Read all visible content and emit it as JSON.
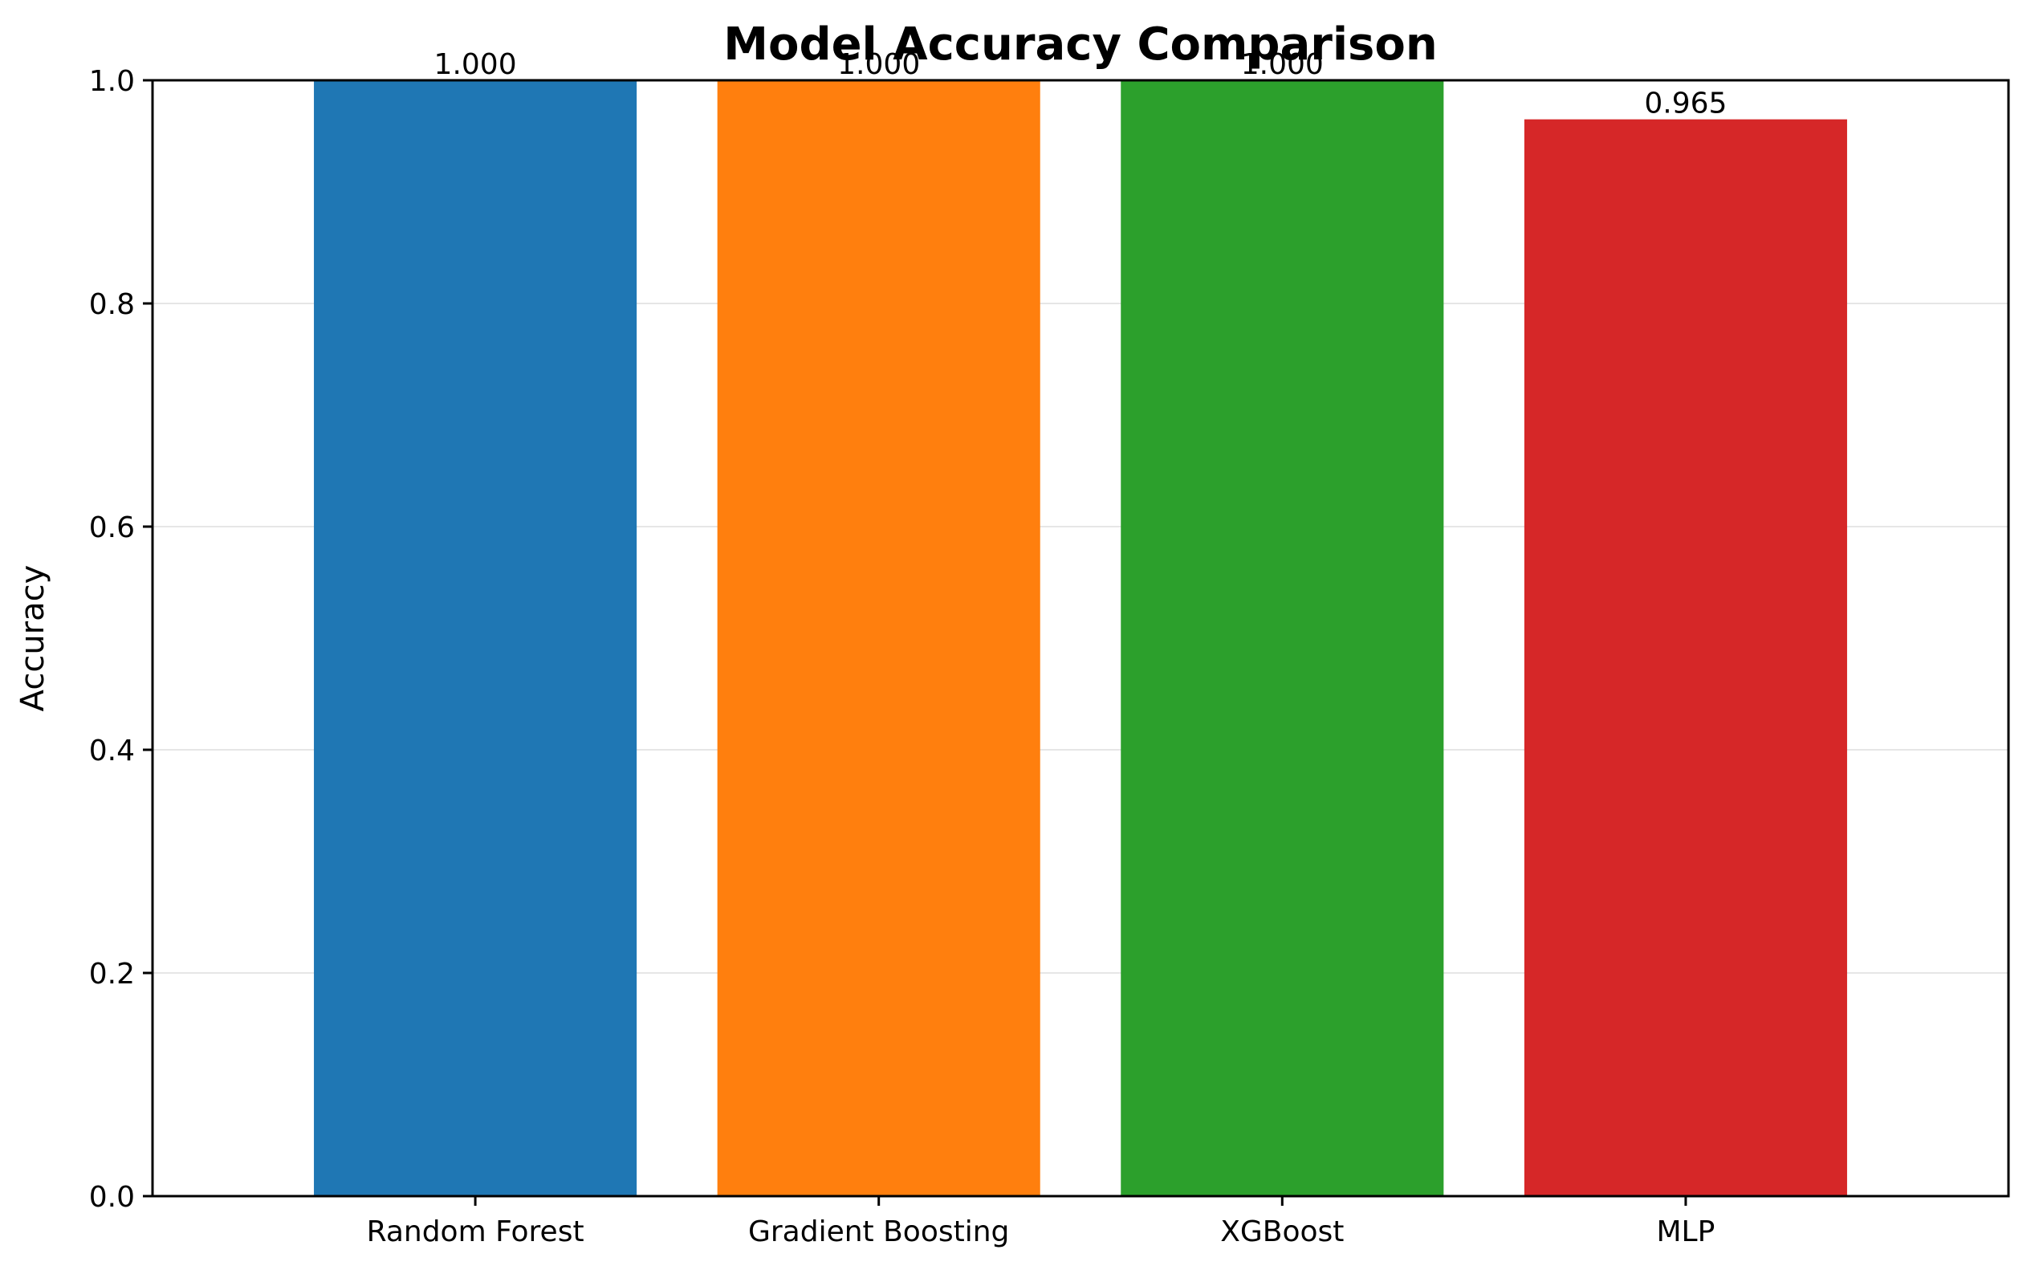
{
  "chart_data": {
    "type": "bar",
    "title": "Model Accuracy Comparison",
    "xlabel": "",
    "ylabel": "Accuracy",
    "categories": [
      "Random Forest",
      "Gradient Boosting",
      "XGBoost",
      "MLP"
    ],
    "values": [
      1.0,
      1.0,
      1.0,
      0.965
    ],
    "data_labels": [
      "1.000",
      "1.000",
      "1.000",
      "0.965"
    ],
    "colors": [
      "#1f77b4",
      "#ff7f0e",
      "#2ca02c",
      "#d62728"
    ],
    "ylim": [
      0,
      1.0
    ],
    "yticks": [
      0.0,
      0.2,
      0.4,
      0.6,
      0.8,
      1.0
    ],
    "ytick_labels": [
      "0.0",
      "0.2",
      "0.4",
      "0.6",
      "0.8",
      "1.0"
    ],
    "grid": "y",
    "grid_color": "#e6e6e6",
    "legend": "none"
  }
}
